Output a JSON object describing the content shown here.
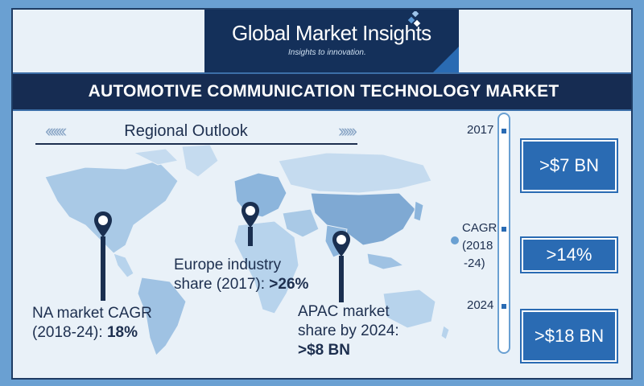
{
  "brand": {
    "name": "Global Market Insights",
    "tagline": "Insights to innovation."
  },
  "title": "AUTOMOTIVE COMMUNICATION TECHNOLOGY MARKET",
  "section": {
    "label": "Regional Outlook"
  },
  "annotations": {
    "na": {
      "line1": "NA market CAGR",
      "line2_label": "(2018-24): ",
      "line2_value": "18%"
    },
    "europe": {
      "line1": "Europe industry",
      "line2_label": "share (2017): ",
      "line2_value": ">26%"
    },
    "apac": {
      "line1": "APAC market",
      "line2_label": "share by 2024:",
      "line3_value": ">$8 BN"
    }
  },
  "timeline": {
    "year_2017": "2017",
    "cagr_label": "CAGR",
    "cagr_period_line1": "(2018",
    "cagr_period_line2": "-24)",
    "year_2024": "2024",
    "value_2017": ">$7 BN",
    "value_cagr": ">14%",
    "value_2024": ">$18 BN"
  },
  "colors": {
    "navy": "#162c52",
    "accent_blue": "#2a6bb3",
    "frame_blue": "#6aa0d2",
    "background": "#e9f1f8"
  },
  "icons": [
    "location-pin-icon",
    "chevron-left-icon",
    "chevron-right-icon",
    "logo-diamond-icon"
  ]
}
